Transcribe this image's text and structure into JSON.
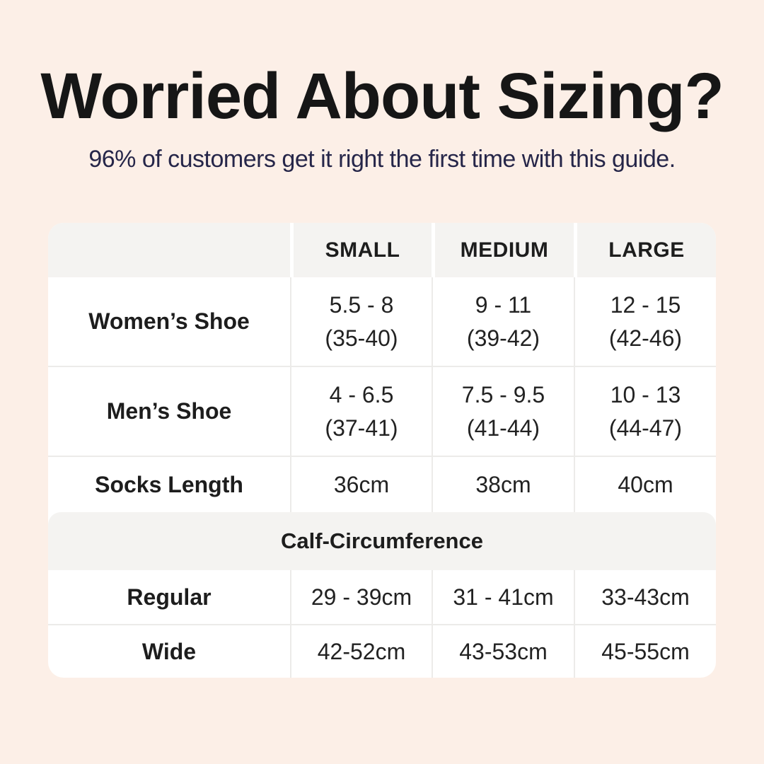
{
  "header": {
    "title": "Worried About Sizing?",
    "subtitle": "96% of customers get it right the first time with this guide."
  },
  "size_table": {
    "headers": [
      "",
      "SMALL",
      "MEDIUM",
      "LARGE"
    ],
    "rows": [
      {
        "label": "Women’s Shoe",
        "small": [
          "5.5 - 8",
          "(35-40)"
        ],
        "medium": [
          "9 - 11",
          "(39-42)"
        ],
        "large": [
          "12 - 15",
          "(42-46)"
        ]
      },
      {
        "label": "Men’s Shoe",
        "small": [
          "4 - 6.5",
          "(37-41)"
        ],
        "medium": [
          "7.5 - 9.5",
          "(41-44)"
        ],
        "large": [
          "10 - 13",
          "(44-47)"
        ]
      },
      {
        "label": "Socks Length",
        "small": [
          "36cm"
        ],
        "medium": [
          "38cm"
        ],
        "large": [
          "40cm"
        ]
      }
    ],
    "section_header": "Calf-Circumference",
    "calf_rows": [
      {
        "label": "Regular",
        "small": "29 - 39cm",
        "medium": "31 - 41cm",
        "large": "33-43cm"
      },
      {
        "label": "Wide",
        "small": "42-52cm",
        "medium": "43-53cm",
        "large": "45-55cm"
      }
    ]
  },
  "colors": {
    "page_background": "#fcefe7",
    "table_background": "#ffffff",
    "header_band_background": "#f4f3f1",
    "divider": "#ecebe9",
    "title_text": "#161616",
    "subtitle_text": "#262649",
    "table_text": "#1d1d1d"
  },
  "chart_data": {
    "type": "table",
    "title": "Worried About Sizing?",
    "subtitle": "96% of customers get it right the first time with this guide.",
    "columns": [
      "",
      "SMALL",
      "MEDIUM",
      "LARGE"
    ],
    "rows": [
      [
        "Women’s Shoe",
        "5.5 - 8 (35-40)",
        "9 - 11 (39-42)",
        "12 - 15 (42-46)"
      ],
      [
        "Men’s Shoe",
        "4 - 6.5 (37-41)",
        "7.5 - 9.5 (41-44)",
        "10 - 13 (44-47)"
      ],
      [
        "Socks Length",
        "36cm",
        "38cm",
        "40cm"
      ],
      [
        "Calf-Circumference",
        "",
        "",
        ""
      ],
      [
        "Regular",
        "29 - 39cm",
        "31 - 41cm",
        "33-43cm"
      ],
      [
        "Wide",
        "42-52cm",
        "43-53cm",
        "45-55cm"
      ]
    ],
    "layout_hints": {
      "section_band_row": "Calf-Circumference spans all columns as a gray band",
      "header_row_background": "#f4f3f1",
      "grid": "light gray hairlines between rows and value columns"
    }
  }
}
